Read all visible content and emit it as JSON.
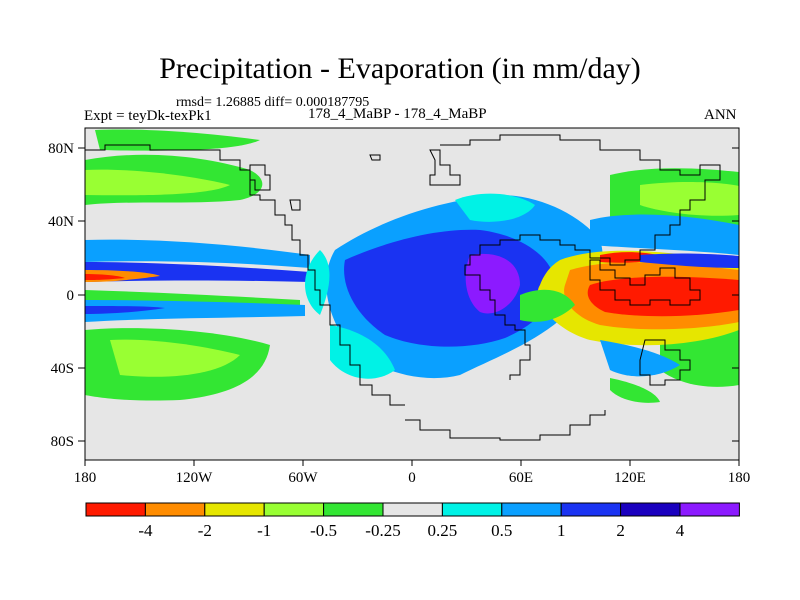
{
  "title": "Precipitation - Evaporation (in mm/day)",
  "stats_line": "rmsd= 1.26885 diff= 0.000187795",
  "experiment_label": "Expt = teyDk-texPk1",
  "run_label": "178_4_MaBP - 178_4_MaBP",
  "season_label": "ANN",
  "lat_ticks": [
    "80N",
    "40N",
    "0",
    "40S",
    "80S"
  ],
  "lon_ticks": [
    "180",
    "120W",
    "60W",
    "0",
    "60E",
    "120E",
    "180"
  ],
  "colorbar": {
    "labels": [
      "-4",
      "-2",
      "-1",
      "-0.5",
      "-0.25",
      "0.25",
      "0.5",
      "1",
      "2",
      "4"
    ],
    "colors": [
      "#ff1a00",
      "#ff8c00",
      "#e6e600",
      "#99ff33",
      "#33e633",
      "#e6e6e6",
      "#00f2e6",
      "#0aa0ff",
      "#1a33f2",
      "#1a00bf",
      "#8c1aff"
    ]
  },
  "colors": {
    "background_field": "#e6e6e6",
    "coastline": "#000000"
  }
}
